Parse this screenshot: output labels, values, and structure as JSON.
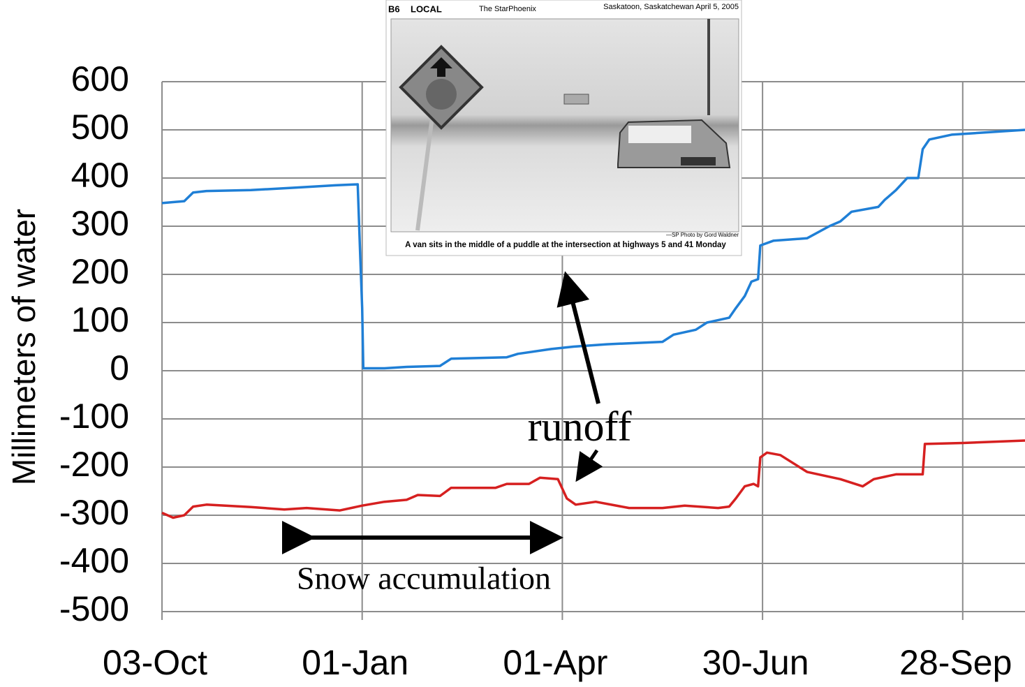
{
  "chart_data": {
    "type": "line",
    "ylabel": "Millimeters of water",
    "ylim": [
      -500,
      600
    ],
    "yticks": [
      -500,
      -400,
      -300,
      -200,
      -100,
      0,
      100,
      200,
      300,
      400,
      500,
      600
    ],
    "xlim": [
      0,
      388
    ],
    "xticks": [
      {
        "value": 0,
        "label": "03-Oct"
      },
      {
        "value": 90,
        "label": "01-Jan"
      },
      {
        "value": 180,
        "label": "01-Apr"
      },
      {
        "value": 270,
        "label": "30-Jun"
      },
      {
        "value": 360,
        "label": "28-Sep"
      }
    ],
    "grid": true,
    "series": [
      {
        "color": "#1f7fd6",
        "x": [
          0,
          10,
          14,
          20,
          40,
          60,
          78,
          88,
          89,
          90,
          90.5,
          100,
          110,
          125,
          130,
          155,
          160,
          175,
          185,
          200,
          225,
          230,
          240,
          245,
          255,
          258,
          262,
          265,
          268,
          269,
          275,
          290,
          300,
          305,
          310,
          322,
          325,
          330,
          335,
          340,
          342,
          345,
          355,
          388
        ],
        "values": [
          348,
          352,
          370,
          373,
          375,
          380,
          385,
          387,
          255,
          130,
          5,
          5,
          8,
          10,
          25,
          28,
          35,
          45,
          50,
          55,
          60,
          75,
          85,
          100,
          110,
          130,
          155,
          185,
          190,
          260,
          270,
          275,
          300,
          310,
          330,
          340,
          355,
          375,
          400,
          400,
          460,
          480,
          490,
          500
        ]
      },
      {
        "color": "#d62020",
        "x": [
          0,
          5,
          10,
          14,
          20,
          40,
          55,
          65,
          80,
          90,
          100,
          110,
          115,
          125,
          130,
          150,
          155,
          165,
          170,
          178,
          180,
          182,
          186,
          195,
          210,
          225,
          235,
          250,
          255,
          258,
          262,
          266,
          268,
          269,
          272,
          278,
          290,
          305,
          315,
          320,
          330,
          342,
          343,
          360,
          388
        ],
        "values": [
          -295,
          -305,
          -300,
          -282,
          -278,
          -283,
          -288,
          -285,
          -290,
          -280,
          -272,
          -268,
          -258,
          -260,
          -243,
          -243,
          -235,
          -235,
          -222,
          -225,
          -245,
          -265,
          -278,
          -272,
          -285,
          -285,
          -280,
          -285,
          -282,
          -265,
          -240,
          -235,
          -240,
          -180,
          -170,
          -175,
          -210,
          -225,
          -240,
          -225,
          -215,
          -215,
          -152,
          -150,
          -145
        ]
      }
    ],
    "annotations": [
      "runoff",
      "Snow accumulation"
    ],
    "inset": {
      "section": "B6",
      "section_name": "LOCAL",
      "paper": "The StarPhoenix",
      "dateline": "Saskatoon, Saskatchewan April 5, 2005",
      "credit": "—SP Photo by Gord Waldner",
      "caption": "A van sits in the middle of a puddle at the intersection at highways 5 and 41 Monday"
    }
  }
}
